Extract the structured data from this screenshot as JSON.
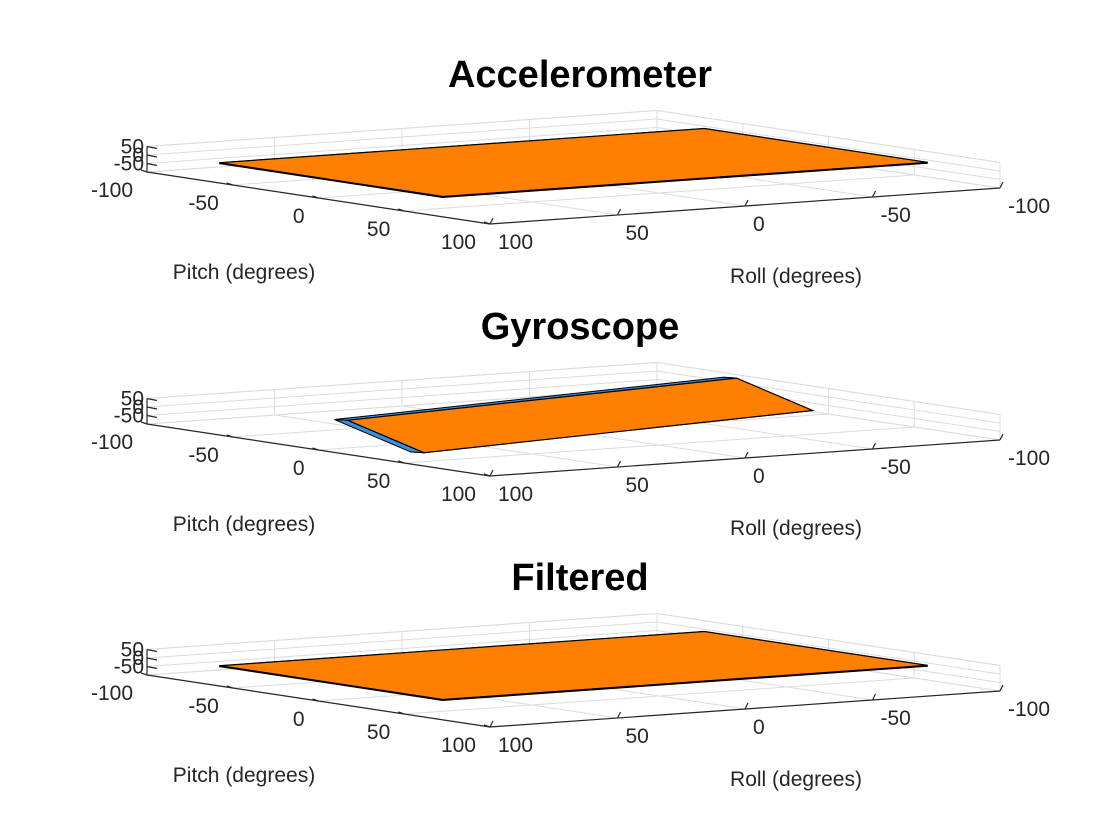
{
  "chart_data": [
    {
      "type": "3d-surface",
      "title": "Accelerometer",
      "xlabel": "Pitch (degrees)",
      "ylabel": "Roll (degrees)",
      "xlim": [
        -100,
        100
      ],
      "ylim": [
        -100,
        100
      ],
      "zlim": [
        -100,
        50
      ],
      "x_ticks": [
        "-100",
        "-50",
        "0",
        "50",
        "100"
      ],
      "y_ticks": [
        "100",
        "50",
        "0",
        "-50",
        "-100"
      ],
      "z_ticks": [
        "50",
        "0",
        "-50"
      ],
      "grid": true,
      "orientation_deg": {
        "pitch": 0,
        "roll": 0
      },
      "colors": {
        "top_face": "#ff8000",
        "side_face": "#3a8fe0",
        "edge": "#000000"
      }
    },
    {
      "type": "3d-surface",
      "title": "Gyroscope",
      "xlabel": "Pitch (degrees)",
      "ylabel": "Roll (degrees)",
      "xlim": [
        -100,
        100
      ],
      "ylim": [
        -100,
        100
      ],
      "zlim": [
        -100,
        50
      ],
      "x_ticks": [
        "-100",
        "-50",
        "0",
        "50",
        "100"
      ],
      "y_ticks": [
        "100",
        "50",
        "0",
        "-50",
        "-100"
      ],
      "z_ticks": [
        "50",
        "0",
        "-50"
      ],
      "grid": true,
      "orientation_deg": {
        "pitch": 70,
        "roll": 15
      },
      "colors": {
        "top_face": "#ff8000",
        "side_face": "#3a8fe0",
        "edge": "#000000"
      }
    },
    {
      "type": "3d-surface",
      "title": "Filtered",
      "xlabel": "Pitch (degrees)",
      "ylabel": "Roll (degrees)",
      "xlim": [
        -100,
        100
      ],
      "ylim": [
        -100,
        100
      ],
      "zlim": [
        -100,
        50
      ],
      "x_ticks": [
        "-100",
        "-50",
        "0",
        "50",
        "100"
      ],
      "y_ticks": [
        "100",
        "50",
        "0",
        "-50",
        "-100"
      ],
      "z_ticks": [
        "50",
        "0",
        "-50"
      ],
      "grid": true,
      "orientation_deg": {
        "pitch": 0,
        "roll": 0
      },
      "colors": {
        "top_face": "#ff8000",
        "side_face": "#3a8fe0",
        "edge": "#000000"
      }
    }
  ]
}
